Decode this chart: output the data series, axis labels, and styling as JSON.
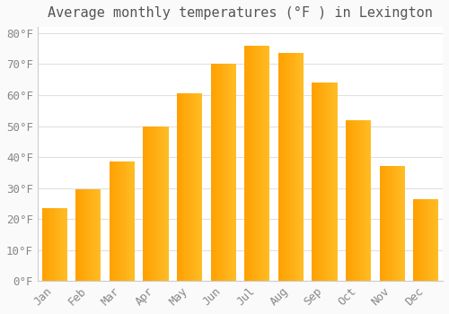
{
  "title": "Average monthly temperatures (°F ) in Lexington",
  "months": [
    "Jan",
    "Feb",
    "Mar",
    "Apr",
    "May",
    "Jun",
    "Jul",
    "Aug",
    "Sep",
    "Oct",
    "Nov",
    "Dec"
  ],
  "values": [
    23.5,
    29.5,
    38.5,
    50.0,
    60.5,
    70.0,
    76.0,
    73.5,
    64.0,
    52.0,
    37.0,
    26.5
  ],
  "bar_color_left": "#FFD040",
  "bar_color_right": "#FFA000",
  "background_color": "#FAFAFA",
  "plot_bg_color": "#FFFFFF",
  "grid_color": "#E0E0E0",
  "ylim": [
    0,
    82
  ],
  "yticks": [
    0,
    10,
    20,
    30,
    40,
    50,
    60,
    70,
    80
  ],
  "tick_label_color": "#888888",
  "title_fontsize": 11,
  "axis_tick_fontsize": 9,
  "title_color": "#555555"
}
